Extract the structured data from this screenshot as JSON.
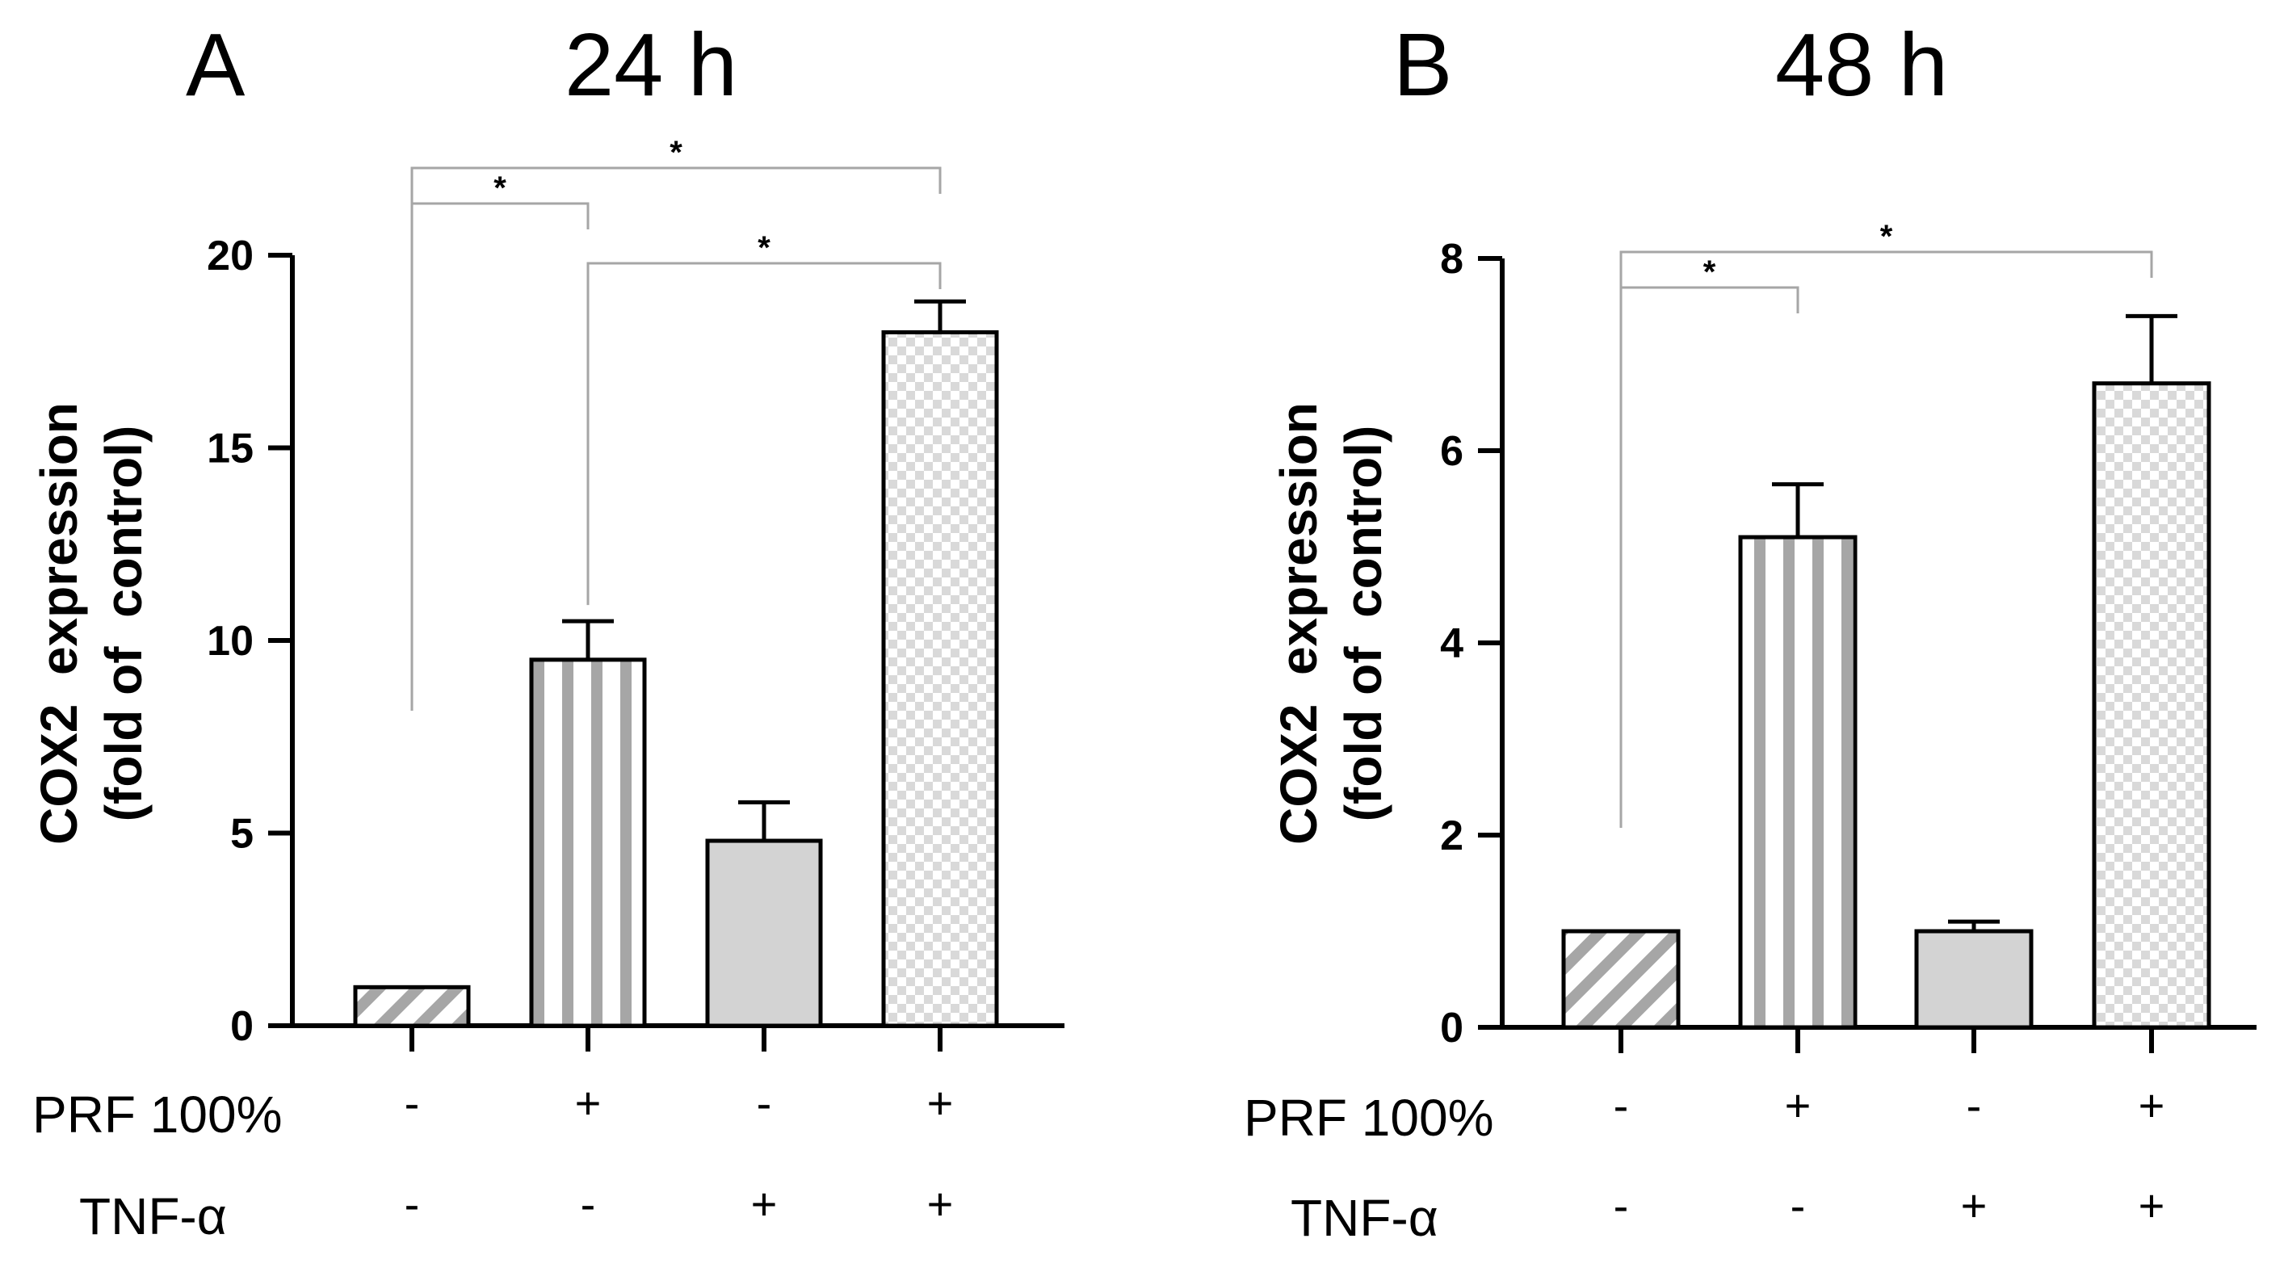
{
  "chart_data": [
    {
      "type": "bar",
      "panel": "A",
      "title": "24 h",
      "ylabel_line1": "COX2  expression",
      "ylabel_line2": "(fold of  control)",
      "ylim": [
        0,
        20
      ],
      "yticks": [
        0,
        5,
        10,
        15,
        20
      ],
      "categories": [
        "control",
        "PRF 100%",
        "TNF-α",
        "PRF 100% + TNF-α"
      ],
      "values": [
        1.0,
        9.5,
        4.8,
        18.0
      ],
      "errors": [
        0.0,
        1.0,
        1.0,
        0.8
      ],
      "patterns": [
        "diagonal-stripes",
        "vertical-stripes",
        "solid-gray",
        "checkerboard"
      ],
      "condition_rows": [
        {
          "label": "PRF 100%",
          "signs": [
            "-",
            "+",
            "-",
            "+"
          ]
        },
        {
          "label": "TNF-α",
          "signs": [
            "-",
            "-",
            "+",
            "+"
          ]
        }
      ],
      "significance": [
        {
          "from": 0,
          "to": 1,
          "label": "*"
        },
        {
          "from": 1,
          "to": 3,
          "label": "*"
        },
        {
          "from": 0,
          "to": 3,
          "label": "*"
        }
      ]
    },
    {
      "type": "bar",
      "panel": "B",
      "title": "48 h",
      "ylabel_line1": "COX2  expression",
      "ylabel_line2": "(fold of  control)",
      "ylim": [
        0,
        8
      ],
      "yticks": [
        0,
        2,
        4,
        6,
        8
      ],
      "categories": [
        "control",
        "PRF 100%",
        "TNF-α",
        "PRF 100% + TNF-α"
      ],
      "values": [
        1.0,
        5.1,
        1.0,
        6.7
      ],
      "errors": [
        0.0,
        0.55,
        0.1,
        0.7
      ],
      "patterns": [
        "diagonal-stripes",
        "vertical-stripes",
        "solid-gray",
        "checkerboard"
      ],
      "condition_rows": [
        {
          "label": "PRF 100%",
          "signs": [
            "-",
            "+",
            "-",
            "+"
          ]
        },
        {
          "label": "TNF-α",
          "signs": [
            "-",
            "-",
            "+",
            "+"
          ]
        }
      ],
      "significance": [
        {
          "from": 0,
          "to": 1,
          "label": "*"
        },
        {
          "from": 0,
          "to": 3,
          "label": "*"
        }
      ]
    }
  ],
  "colors": {
    "bar_stripe": "#a6a6a6",
    "bar_solid": "#d3d3d3",
    "checker": "#d9d9d9",
    "bracket": "#a6a6a6",
    "axis": "#000000"
  }
}
